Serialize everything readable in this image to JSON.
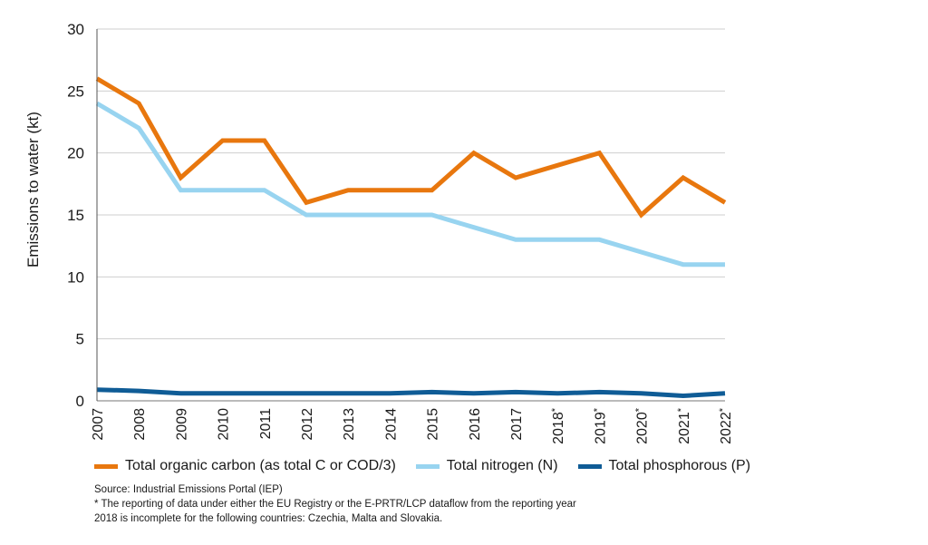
{
  "chart_data": {
    "type": "line",
    "title": "",
    "ylabel": "Emissions to water (kt)",
    "xlabel": "",
    "ylim": [
      0,
      30
    ],
    "yticks": [
      0,
      5,
      10,
      15,
      20,
      25,
      30
    ],
    "grid": true,
    "categories": [
      "2007",
      "2008",
      "2009",
      "2010",
      "2011",
      "2012",
      "2013",
      "2014",
      "2015",
      "2016",
      "2017",
      "2018*",
      "2019*",
      "2020*",
      "2021*",
      "2022*"
    ],
    "series": [
      {
        "name": "Total organic carbon (as total C or COD/3)",
        "color": "#e8770e",
        "values": [
          26,
          24,
          18,
          21,
          21,
          16,
          17,
          17,
          17,
          20,
          18,
          19,
          20,
          15,
          18,
          16
        ]
      },
      {
        "name": "Total nitrogen (N)",
        "color": "#98d4f0",
        "values": [
          24,
          22,
          17,
          17,
          17,
          15,
          15,
          15,
          15,
          14,
          13,
          13,
          13,
          12,
          11,
          11
        ]
      },
      {
        "name": "Total phosphorous (P)",
        "color": "#0f5c96",
        "values": [
          0.9,
          0.8,
          0.6,
          0.6,
          0.6,
          0.6,
          0.6,
          0.6,
          0.7,
          0.6,
          0.7,
          0.6,
          0.7,
          0.6,
          0.4,
          0.6
        ]
      }
    ],
    "legend_position": "bottom"
  },
  "notes": {
    "source": "Source: Industrial Emissions Portal (IEP)",
    "footnote_line1": "* The reporting of data under either the EU Registry or the E-PRTR/LCP dataflow from the reporting year",
    "footnote_line2": "2018 is incomplete for the following countries: Czechia, Malta and Slovakia."
  }
}
